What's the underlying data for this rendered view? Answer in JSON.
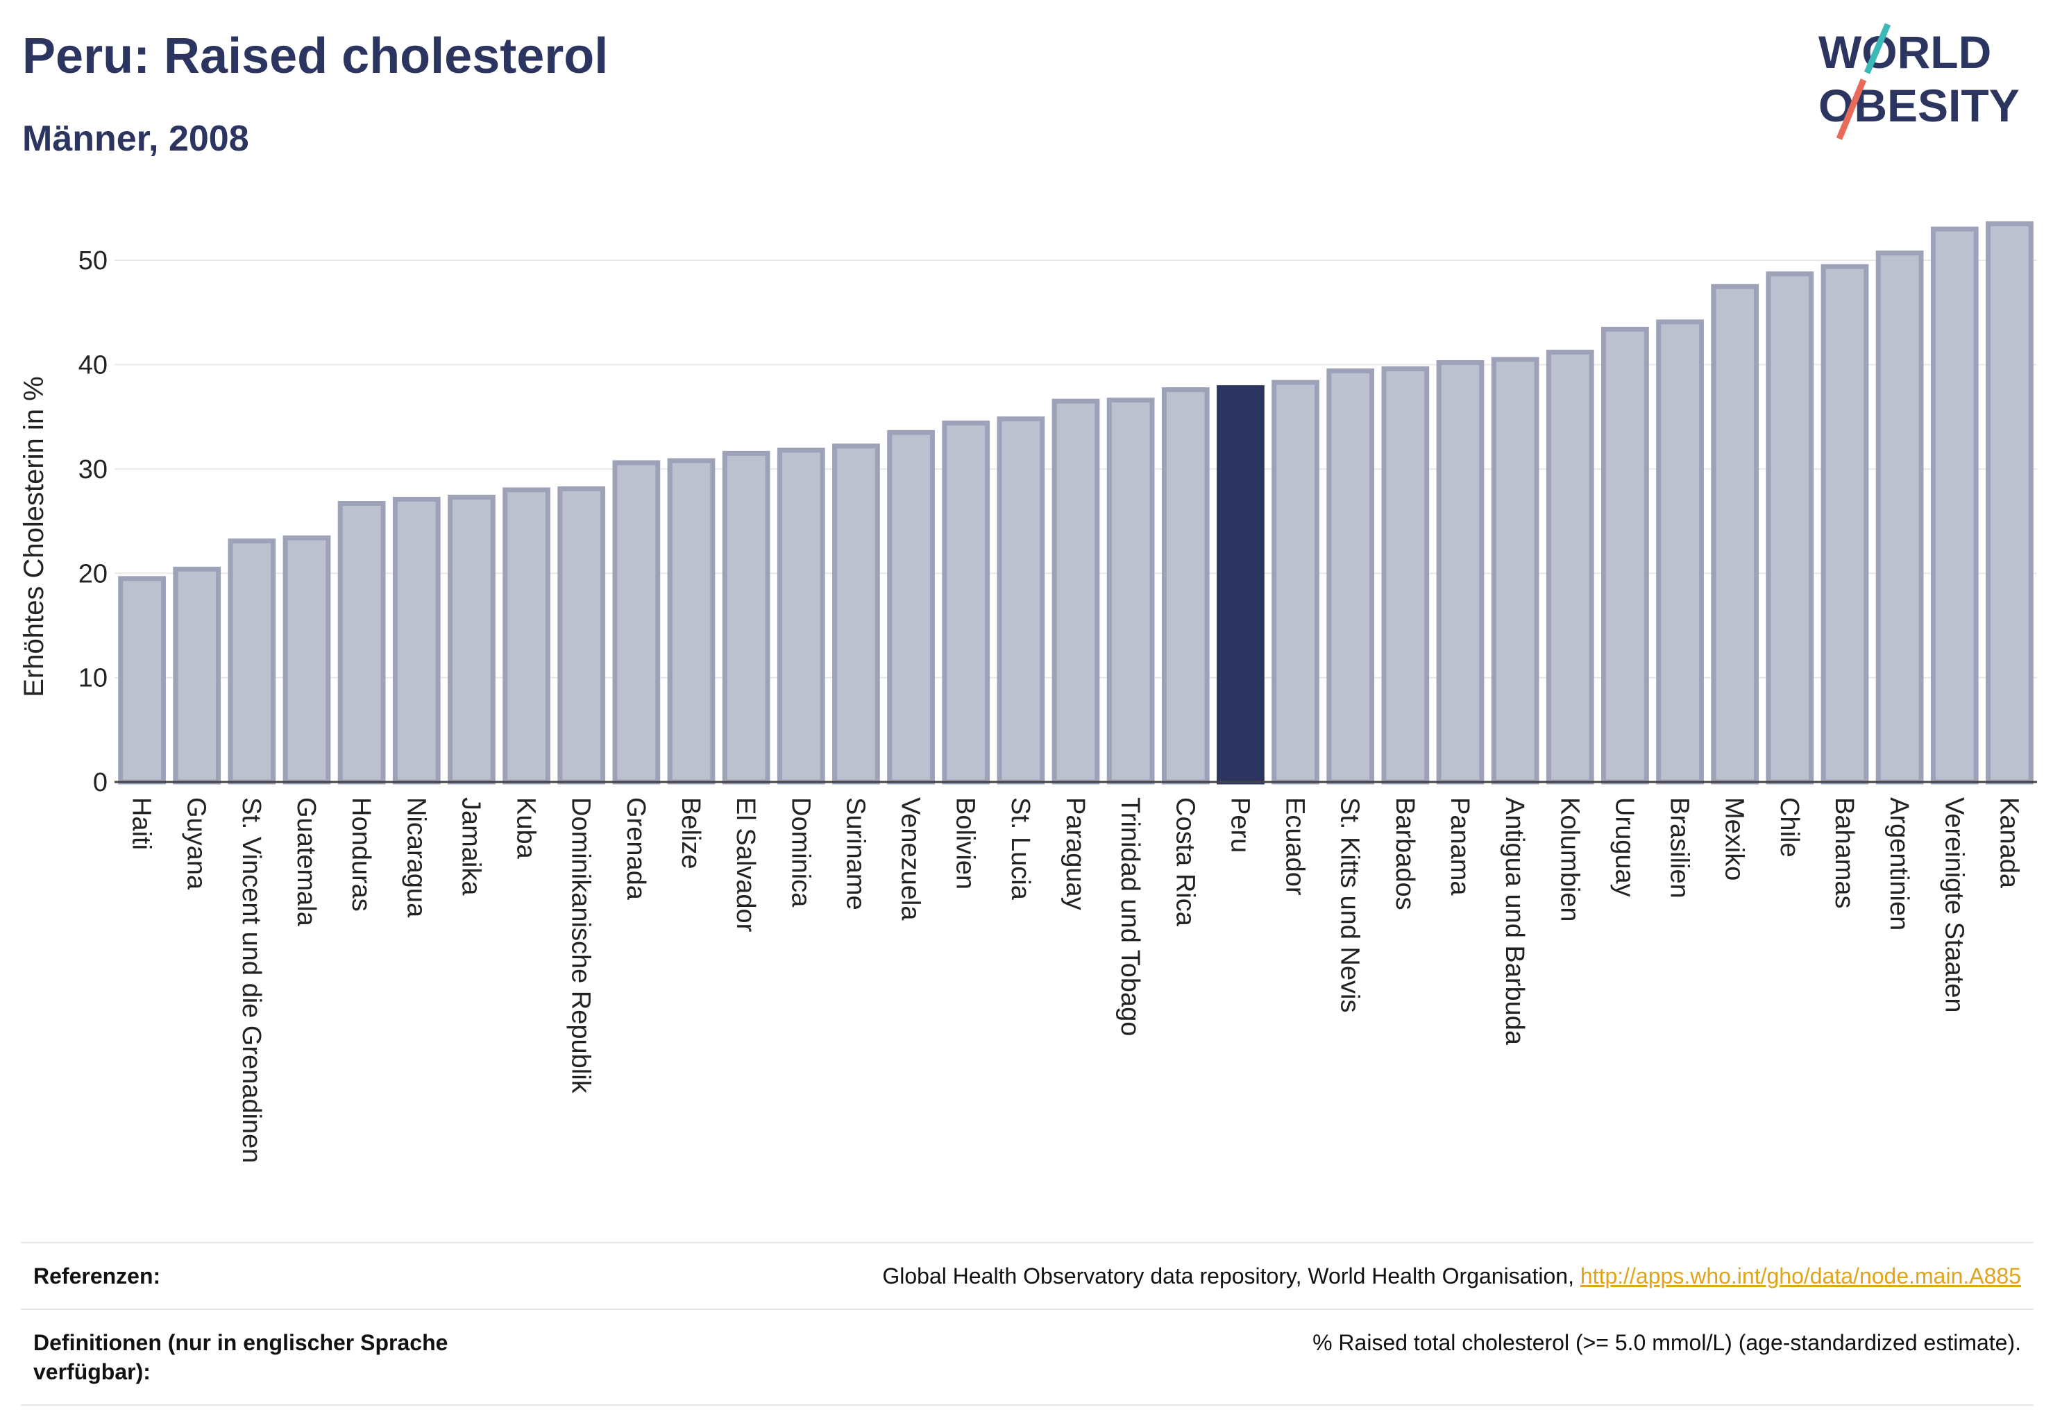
{
  "header": {
    "title": "Peru: Raised cholesterol",
    "subtitle": "Männer, 2008"
  },
  "logo": {
    "line1": "WORLD",
    "line2": "OBESITY",
    "colors": {
      "text": "#2b3560",
      "accent_teal": "#3bb8b8",
      "accent_coral": "#e86b5a"
    }
  },
  "chart_data": {
    "type": "bar",
    "title": "Peru: Raised cholesterol",
    "subtitle": "Männer, 2008",
    "xlabel": "",
    "ylabel": "Erhöhtes Cholesterin in %",
    "ylim": [
      0,
      55
    ],
    "yticks": [
      0,
      10,
      20,
      30,
      40,
      50
    ],
    "grid": true,
    "highlight": "Peru",
    "colors": {
      "bar": "#bcc0cf",
      "bar_border": "#9da2b8",
      "highlight": "#2b3560"
    },
    "categories": [
      "Haiti",
      "Guyana",
      "St. Vincent und die Grenadinen",
      "Guatemala",
      "Honduras",
      "Nicaragua",
      "Jamaika",
      "Kuba",
      "Dominikanische Republik",
      "Grenada",
      "Belize",
      "El Salvador",
      "Dominica",
      "Suriname",
      "Venezuela",
      "Bolivien",
      "St. Lucia",
      "Paraguay",
      "Trinidad und Tobago",
      "Costa Rica",
      "Peru",
      "Ecuador",
      "St. Kitts und Nevis",
      "Barbados",
      "Panama",
      "Antigua und Barbuda",
      "Kolumbien",
      "Uruguay",
      "Brasilien",
      "Mexiko",
      "Chile",
      "Bahamas",
      "Argentinien",
      "Vereinigte Staaten",
      "Kanada"
    ],
    "values": [
      19.5,
      20.4,
      23.1,
      23.4,
      26.7,
      27.1,
      27.3,
      28.0,
      28.1,
      30.6,
      30.8,
      31.5,
      31.8,
      32.2,
      33.5,
      34.4,
      34.8,
      36.5,
      36.6,
      37.6,
      37.8,
      38.3,
      39.4,
      39.6,
      40.2,
      40.5,
      41.2,
      43.4,
      44.1,
      47.5,
      48.7,
      49.4,
      50.7,
      53.0,
      53.5
    ]
  },
  "references": {
    "rows": [
      {
        "label": "Referenzen:",
        "text": "Global Health Observatory data repository, World Health Organisation, ",
        "link": "http://apps.who.int/gho/data/node.main.A885"
      },
      {
        "label": "Definitionen (nur in englischer Sprache verfügbar):",
        "text": "% Raised total cholesterol (>= 5.0 mmol/L) (age-standardized estimate).",
        "link": ""
      }
    ]
  }
}
